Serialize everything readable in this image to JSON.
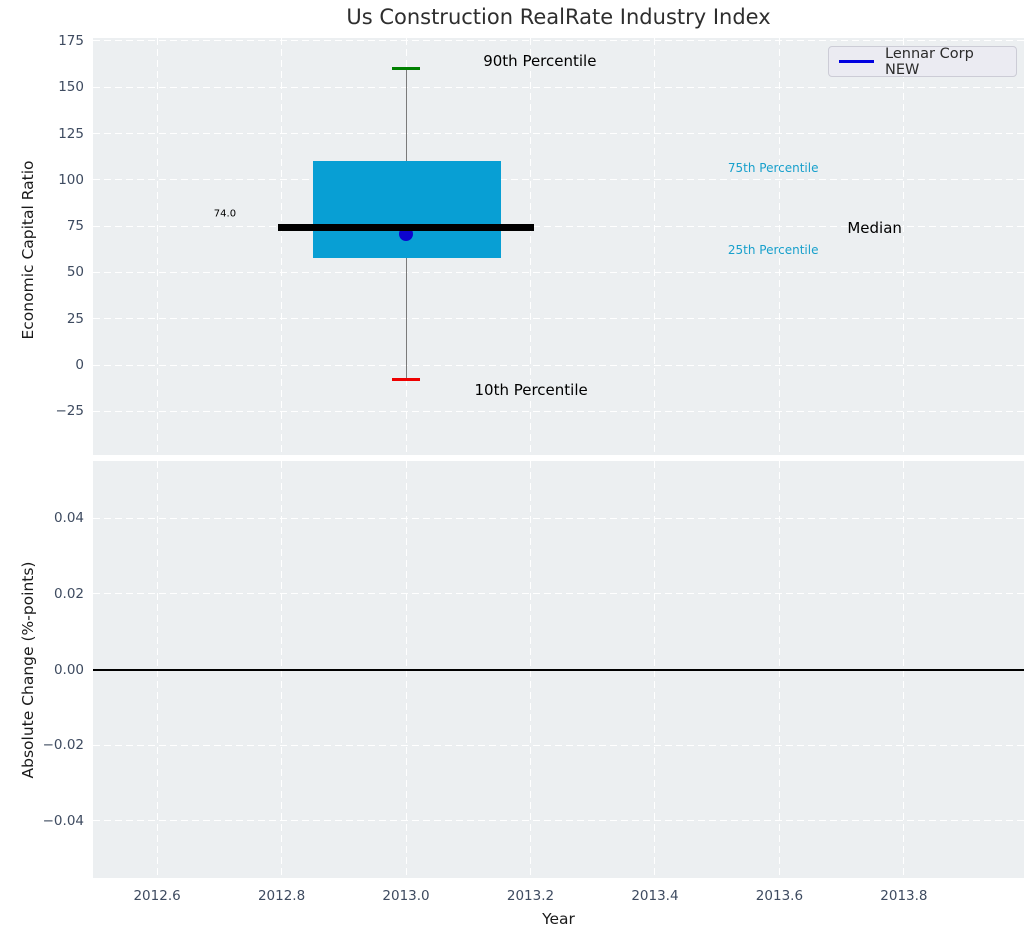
{
  "figure": {
    "title": "Us Construction RealRate Industry Index"
  },
  "legend": {
    "label": "Lennar Corp NEW",
    "line_color": "#0101e0"
  },
  "colors": {
    "axes_background": "#eceff1",
    "grid": "#ffffff",
    "box_fill": "#089fd4",
    "whisker": "#7a7a7a",
    "cap_90th": "#008000",
    "cap_10th": "#ee0000",
    "median_line": "#000000",
    "marker": "#0d04cf",
    "tick_label": "#3e4b60",
    "percentile_label": "#18a0cc",
    "zero_line": "#000000"
  },
  "chart_data": [
    {
      "type": "boxplot",
      "title": "Us Construction RealRate Industry Index",
      "ylabel": "Economic Capital Ratio",
      "xlim": [
        2012.497,
        2013.993
      ],
      "ylim": [
        -48.6,
        176.6
      ],
      "grid": "white dashed, both axes",
      "legend_position": "upper right",
      "yticks": [
        {
          "v": 175,
          "label": "175"
        },
        {
          "v": 150,
          "label": "150"
        },
        {
          "v": 125,
          "label": "125"
        },
        {
          "v": 100,
          "label": "100"
        },
        {
          "v": 75,
          "label": "75"
        },
        {
          "v": 50,
          "label": "50"
        },
        {
          "v": 25,
          "label": "25"
        },
        {
          "v": 0,
          "label": "0"
        },
        {
          "v": -25,
          "label": "−25"
        }
      ],
      "box": {
        "x": 2013.0,
        "p90": 160,
        "p75": 110,
        "median": 74,
        "p25": 58,
        "p10": -8,
        "box_x_span": [
          2012.85,
          2013.152
        ],
        "median_x_span": [
          2012.794,
          2013.206
        ],
        "cap_half_width": 0.022
      },
      "marker": {
        "label": "Lennar Corp NEW",
        "x": 2013.0,
        "y": 71
      },
      "annotations": [
        {
          "id": "p90-label",
          "text": "90th Percentile",
          "x": 2013.215,
          "y": 164,
          "size": 15,
          "color": "#000000"
        },
        {
          "id": "p10-label",
          "text": "10th Percentile",
          "x": 2013.201,
          "y": -13.5,
          "size": 15,
          "color": "#000000"
        },
        {
          "id": "p75-label",
          "text": "75th Percentile",
          "x": 2013.59,
          "y": 106.3,
          "size": 12,
          "color": "#18a0cc"
        },
        {
          "id": "p25-label",
          "text": "25th Percentile",
          "x": 2013.59,
          "y": 62,
          "size": 12,
          "color": "#18a0cc"
        },
        {
          "id": "median-label",
          "text": "Median",
          "x": 2013.753,
          "y": 73.8,
          "size": 15,
          "color": "#000000"
        },
        {
          "id": "median-value-label",
          "text": "74.0",
          "x": 2012.709,
          "y": 81.8,
          "size": 10,
          "color": "#000000"
        }
      ]
    },
    {
      "type": "line",
      "ylabel": "Absolute Change (%-points)",
      "xlabel": "Year",
      "xlim": [
        2012.497,
        2013.993
      ],
      "ylim": [
        -0.0552,
        0.0552
      ],
      "series": [],
      "zero_line": 0.0,
      "yticks": [
        {
          "v": 0.04,
          "label": "0.04"
        },
        {
          "v": 0.02,
          "label": "0.02"
        },
        {
          "v": 0.0,
          "label": "0.00"
        },
        {
          "v": -0.02,
          "label": "−0.02"
        },
        {
          "v": -0.04,
          "label": "−0.04"
        }
      ],
      "xticks": [
        {
          "v": 2012.6,
          "label": "2012.6"
        },
        {
          "v": 2012.8,
          "label": "2012.8"
        },
        {
          "v": 2013.0,
          "label": "2013.0"
        },
        {
          "v": 2013.2,
          "label": "2013.2"
        },
        {
          "v": 2013.4,
          "label": "2013.4"
        },
        {
          "v": 2013.6,
          "label": "2013.6"
        },
        {
          "v": 2013.8,
          "label": "2013.8"
        }
      ]
    }
  ]
}
